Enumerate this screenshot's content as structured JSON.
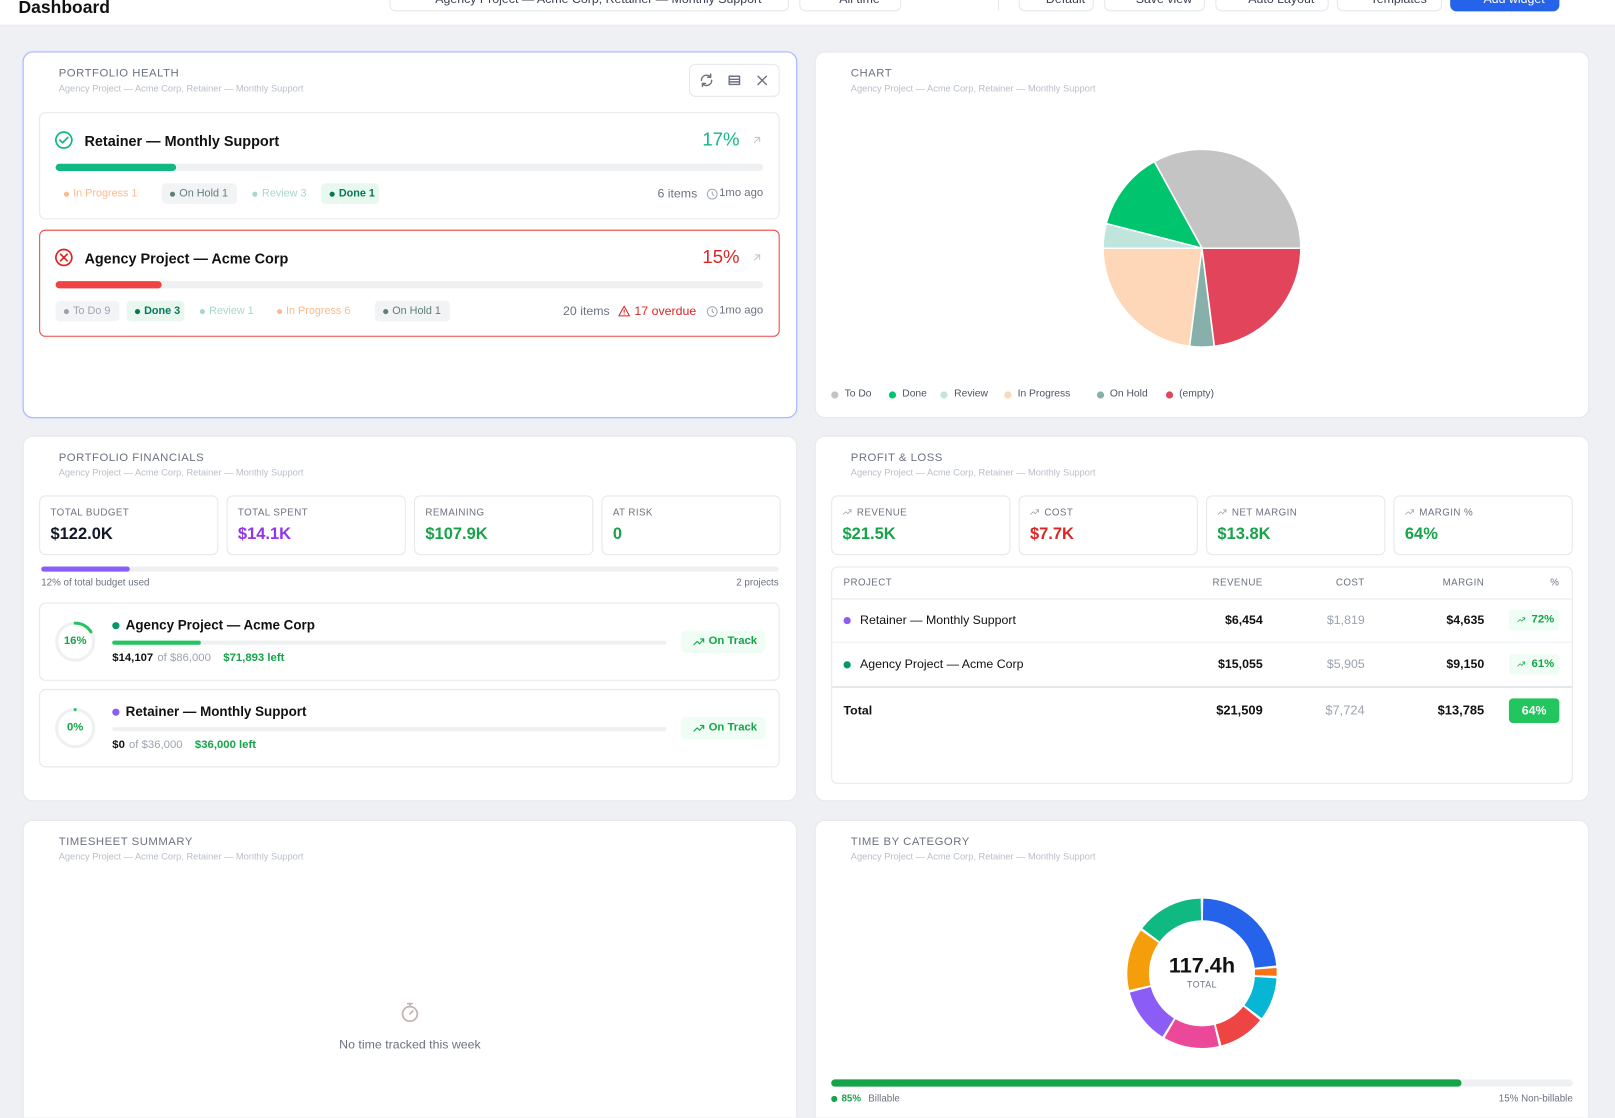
{
  "header": {
    "title": "Dashboard",
    "filter": "Agency Project — Acme Corp, Retainer — Monthly Support",
    "range": "All time",
    "view": "Default",
    "actions": [
      "Save view",
      "Auto Layout",
      "Templates",
      "Add widget"
    ]
  },
  "portfolio_health": {
    "title": "PORTFOLIO HEALTH",
    "subtitle": "Agency Project — Acme Corp, Retainer — Monthly Support",
    "projects": [
      {
        "name": "Retainer — Monthly Support",
        "color": "#10b981",
        "progress": {
          "value": 17,
          "label": "17%"
        },
        "chips": [
          {
            "label": "In Progress 1",
            "color": "#fdba8c",
            "background": "#ffffff"
          },
          {
            "label": "On Hold 1",
            "color": "#5f7f7a",
            "background": "#f1f3f4"
          },
          {
            "label": "Review 3",
            "color": "#a7d8cc",
            "background": "#ffffff"
          },
          {
            "label": "Done 1",
            "color": "#047857",
            "background": "#e8f8ef"
          }
        ],
        "items": "6 items",
        "updated": "1mo ago"
      },
      {
        "name": "Agency Project — Acme Corp",
        "color": "#dc2626",
        "progress": {
          "value": 15,
          "label": "15%"
        },
        "chips": [
          {
            "label": "To Do 9",
            "color": "#9ca3af",
            "background": "#f3f4f6"
          },
          {
            "label": "Done 3",
            "color": "#047857",
            "background": "#e8f8ef"
          },
          {
            "label": "Review 1",
            "color": "#a7d8cc",
            "background": "#ffffff"
          },
          {
            "label": "In Progress 6",
            "color": "#fdba8c",
            "background": "#ffffff"
          },
          {
            "label": "On Hold 1",
            "color": "#5f7f7a",
            "background": "#f1f3f4"
          }
        ],
        "items": "20 items",
        "overdue": "17 overdue",
        "updated": "1mo ago"
      }
    ]
  },
  "status_chart": {
    "type": "pie",
    "title": "CHART",
    "subtitle": "Agency Project — Acme Corp, Retainer — Monthly Support",
    "categories": [
      "To Do",
      "Done",
      "Review",
      "In Progress",
      "On Hold",
      "(empty)"
    ],
    "values": [
      33,
      13,
      4,
      23,
      4,
      23
    ],
    "colors": [
      "#c4c4c4",
      "#00c46e",
      "#bfe5dc",
      "#fed7b8",
      "#88b0aa",
      "#e2445c"
    ]
  },
  "portfolio_financials": {
    "title": "PORTFOLIO FINANCIALS",
    "subtitle": "Agency Project — Acme Corp, Retainer — Monthly Support",
    "stats": [
      {
        "label": "TOTAL BUDGET",
        "value": "$122.0K",
        "color": "#111827"
      },
      {
        "label": "TOTAL SPENT",
        "value": "$14.1K",
        "color": "#9333ea"
      },
      {
        "label": "REMAINING",
        "value": "$107.9K",
        "color": "#16a34a"
      },
      {
        "label": "AT RISK",
        "value": "0",
        "color": "#16a34a"
      }
    ],
    "budget_used": {
      "value": 12,
      "label": "12% of total budget used"
    },
    "project_count": "2 projects",
    "projects": [
      {
        "name": "Agency Project — Acme Corp",
        "color": "#059669",
        "progress": {
          "value": 16,
          "label": "16%"
        },
        "spent": "$14,107",
        "budget": "of $86,000",
        "left": "$71,893 left",
        "status": "On Track"
      },
      {
        "name": "Retainer — Monthly Support",
        "color": "#8b5cf6",
        "progress": {
          "value": 0,
          "label": "0%"
        },
        "spent": "$0",
        "budget": "of $36,000",
        "left": "$36,000 left",
        "status": "On Track"
      }
    ]
  },
  "profit_loss": {
    "title": "PROFIT & LOSS",
    "subtitle": "Agency Project — Acme Corp, Retainer — Monthly Support",
    "stats": [
      {
        "label": "REVENUE",
        "value": "$21.5K",
        "color": "#16a34a"
      },
      {
        "label": "COST",
        "value": "$7.7K",
        "color": "#dc2626"
      },
      {
        "label": "NET MARGIN",
        "value": "$13.8K",
        "color": "#16a34a"
      },
      {
        "label": "MARGIN %",
        "value": "64%",
        "color": "#16a34a"
      }
    ],
    "table": {
      "columns": [
        "PROJECT",
        "REVENUE",
        "COST",
        "MARGIN",
        "%"
      ],
      "rows": [
        {
          "color": "#8b5cf6",
          "cells": [
            "Retainer — Monthly Support",
            "$6,454",
            "$1,819",
            "$4,635",
            "72%"
          ]
        },
        {
          "color": "#059669",
          "cells": [
            "Agency Project — Acme Corp",
            "$15,055",
            "$5,905",
            "$9,150",
            "61%"
          ]
        }
      ],
      "total": [
        "Total",
        "$21,509",
        "$7,724",
        "$13,785",
        "64%"
      ]
    }
  },
  "timesheet_summary": {
    "title": "TIMESHEET SUMMARY",
    "subtitle": "Agency Project — Acme Corp, Retainer — Monthly Support",
    "empty": "No time tracked this week"
  },
  "time_by_category": {
    "type": "donut",
    "title": "TIME BY CATEGORY",
    "subtitle": "Agency Project — Acme Corp, Retainer — Monthly Support",
    "total": "117.4h",
    "total_label": "TOTAL",
    "values": [
      27.7,
      2.6,
      11.4,
      12.4,
      14.7,
      14.7,
      16.3,
      17.6
    ],
    "colors": [
      "#2563eb",
      "#f97316",
      "#06b6d4",
      "#ef4444",
      "#ec4899",
      "#8b5cf6",
      "#f59e0b",
      "#10b981"
    ],
    "billable": {
      "value": 85,
      "label": "85%"
    },
    "billable_text": "Billable",
    "non_billable": "15% Non-billable"
  }
}
